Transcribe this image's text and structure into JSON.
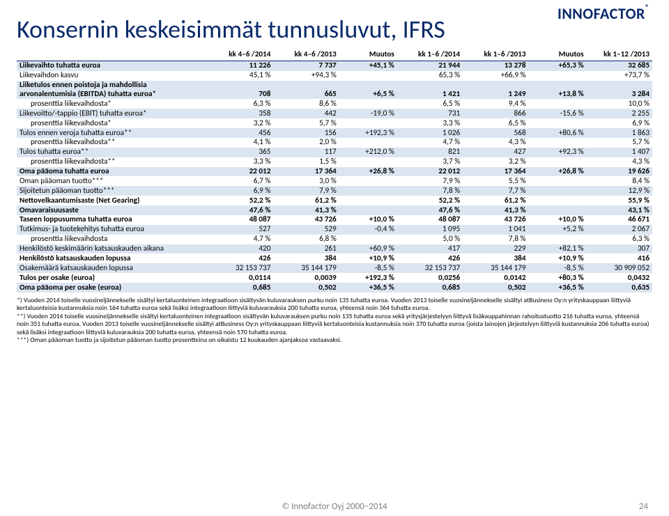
{
  "logo": {
    "text": "INNOFACTOR",
    "reg": "®"
  },
  "title": "Konsernin keskeisimmät tunnusluvut, IFRS",
  "table": {
    "headers": [
      "",
      "kk 4–6 /2014",
      "kk 4–6 /2013",
      "Muutos",
      "kk 1–6 /2014",
      "kk 1–6 /2013",
      "Muutos",
      "kk 1–12 /2013"
    ],
    "rows": [
      {
        "bg": true,
        "bold": true,
        "indent": false,
        "cells": [
          "Liikevaihto tuhatta euroa",
          "11 226",
          "7 737",
          "+45,1 %",
          "21 944",
          "13 278",
          "+65,3 %",
          "32 685"
        ]
      },
      {
        "bg": false,
        "bold": false,
        "indent": false,
        "cells": [
          "Liikevaihdon kasvu",
          "45,1 %",
          "+94,3 %",
          "",
          "65,3 %",
          "+66,9 %",
          "",
          "+73,7 %"
        ]
      },
      {
        "bg": true,
        "bold": true,
        "indent": false,
        "cells": [
          "Liiketulos ennen poistoja ja mahdollisia arvonalentumisia (EBITDA) tuhatta euroa*",
          "708",
          "665",
          "+6,5 %",
          "1 421",
          "1 249",
          "+13,8 %",
          "3 284"
        ]
      },
      {
        "bg": false,
        "bold": false,
        "indent": true,
        "cells": [
          "prosenttia liikevaihdosta*",
          "6,3 %",
          "8,6 %",
          "",
          "6,5 %",
          "9,4 %",
          "",
          "10,0 %"
        ]
      },
      {
        "bg": true,
        "bold": false,
        "indent": false,
        "cells": [
          "Liikevoitto/-tappio (EBIT) tuhatta euroa*",
          "358",
          "442",
          "-19,0 %",
          "731",
          "866",
          "-15,6 %",
          "2 255"
        ]
      },
      {
        "bg": false,
        "bold": false,
        "indent": true,
        "cells": [
          "prosenttia liikevaihdosta*",
          "3,2 %",
          "5,7 %",
          "",
          "3,3 %",
          "6,5 %",
          "",
          "6,9 %"
        ]
      },
      {
        "bg": true,
        "bold": false,
        "indent": false,
        "cells": [
          "Tulos ennen veroja tuhatta euroa**",
          "456",
          "156",
          "+192,3 %",
          "1 026",
          "568",
          "+80,6 %",
          "1 863"
        ]
      },
      {
        "bg": false,
        "bold": false,
        "indent": true,
        "cells": [
          "prosenttia liikevaihdosta**",
          "4,1 %",
          "2,0 %",
          "",
          "4,7 %",
          "4,3 %",
          "",
          "5,7 %"
        ]
      },
      {
        "bg": true,
        "bold": false,
        "indent": false,
        "cells": [
          "Tulos tuhatta euroa**",
          "365",
          "117",
          "+212,0 %",
          "821",
          "427",
          "+92,3 %",
          "1 407"
        ]
      },
      {
        "bg": false,
        "bold": false,
        "indent": true,
        "cells": [
          "prosenttia liikevaihdosta**",
          "3,3 %",
          "1,5 %",
          "",
          "3,7 %",
          "3,2 %",
          "",
          "4,3 %"
        ]
      },
      {
        "bg": true,
        "bold": true,
        "indent": false,
        "cells": [
          "Oma pääoma tuhatta euroa",
          "22 012",
          "17 364",
          "+26,8 %",
          "22 012",
          "17 364",
          "+26,8 %",
          "19 626"
        ]
      },
      {
        "bg": false,
        "bold": false,
        "indent": false,
        "cells": [
          "Oman pääoman tuotto***",
          "6,7 %",
          "3,0 %",
          "",
          "7,9 %",
          "5,5 %",
          "",
          "8,4 %"
        ]
      },
      {
        "bg": true,
        "bold": false,
        "indent": false,
        "cells": [
          "Sijoitetun pääoman tuotto***",
          "6,9 %",
          "7,9 %",
          "",
          "7,8 %",
          "7,7 %",
          "",
          "12,9 %"
        ]
      },
      {
        "bg": false,
        "bold": true,
        "indent": false,
        "cells": [
          "Nettovelkaantumisaste (Net Gearing)",
          "52,2 %",
          "61,2 %",
          "",
          "52,2 %",
          "61,2 %",
          "",
          "55,9 %"
        ]
      },
      {
        "bg": true,
        "bold": true,
        "indent": false,
        "cells": [
          "Omavaraisuusaste",
          "47,6 %",
          "41,3 %",
          "",
          "47,6 %",
          "41,3 %",
          "",
          "43,1 %"
        ]
      },
      {
        "bg": false,
        "bold": true,
        "indent": false,
        "cells": [
          "Taseen loppusumma tuhatta euroa",
          "48 087",
          "43 726",
          "+10,0 %",
          "48 087",
          "43 726",
          "+10,0 %",
          "46 671"
        ]
      },
      {
        "bg": true,
        "bold": false,
        "indent": false,
        "cells": [
          "Tutkimus- ja tuotekehitys tuhatta euroa",
          "527",
          "529",
          "-0,4 %",
          "1 095",
          "1 041",
          "+5,2 %",
          "2 067"
        ]
      },
      {
        "bg": false,
        "bold": false,
        "indent": true,
        "cells": [
          "prosenttia liikevaihdosta",
          "4,7 %",
          "6,8 %",
          "",
          "5,0 %",
          "7,8 %",
          "",
          "6,3 %"
        ]
      },
      {
        "bg": true,
        "bold": false,
        "indent": false,
        "cells": [
          "Henkilöstö keskimäärin katsauskauden aikana",
          "420",
          "261",
          "+60,9 %",
          "417",
          "229",
          "+82,1 %",
          "307"
        ]
      },
      {
        "bg": false,
        "bold": true,
        "indent": false,
        "cells": [
          "Henkilöstö katsauskauden lopussa",
          "426",
          "384",
          "+10,9 %",
          "426",
          "384",
          "+10,9 %",
          "416"
        ]
      },
      {
        "bg": true,
        "bold": false,
        "indent": false,
        "cells": [
          "Osakemäärä katsauskauden lopussa",
          "32 153 737",
          "35 144 179",
          "-8,5 %",
          "32 153 737",
          "35 144 179",
          "-8,5 %",
          "30 909 052"
        ]
      },
      {
        "bg": false,
        "bold": true,
        "indent": false,
        "cells": [
          "Tulos per osake (euroa)",
          "0,0114",
          "0,0039",
          "+192,3 %",
          "0,0256",
          "0,0142",
          "+80,3 %",
          "0,0432"
        ]
      },
      {
        "bg": true,
        "bold": true,
        "indent": false,
        "cells": [
          "Oma pääoma per osake (euroa)",
          "0,685",
          "0,502",
          "+36,5 %",
          "0,685",
          "0,502",
          "+36,5 %",
          "0,635"
        ]
      }
    ]
  },
  "footnotes": [
    "*) Vuoden 2014 toiselle vuosineljännekselle sisältyi kertaluonteinen integraatioon sisältyvän kuluvarauksen purku noin 135 tuhatta euroa. Vuoden 2013 toiselle vuosineljännekselle sisältyi atBusiness Oy:n yrityskauppaan liittyviä kertaluonteisia kustannuksia noin 164 tuhatta euroa sekä lisäksi integraatioon liittyviä kuluvarauksia 200 tuhatta euroa, yhteensä noin 364 tuhatta euroa.",
    "**) Vuoden 2014 toiselle vuosineljännekselle sisältyi kertaluonteinen integraatioon sisältyvän kuluvarauksen purku noin 135 tuhatta euroa sekä yritysjärjestelyyn liittyvä lisäkauppahinnan rahoitustuotto 216 tuhatta euroa, yhteensä noin 351 tuhatta euroa.  Vuoden 2013 toiselle vuosineljännekselle sisältyi atBusiness Oy:n yrityskauppaan liittyviä kertaluonteisia kustannuksia noin 370 tuhatta euroa (joista lainojen järjestelyyn liittyviä kustannuksia 206 tuhatta euroa) sekä lisäksi integraatioon liittyviä kuluvarauksia 200 tuhatta euroa, yhteensä noin 570 tuhatta euroa.",
    "***) Oman pääoman tuotto ja sijoitetun pääoman tuotto prosentteina on oikaistu 12 kuukauden ajanjaksoa vastaavaksi."
  ],
  "footer": "© Innofactor Oyj 2000−2014",
  "pagenum": "24"
}
